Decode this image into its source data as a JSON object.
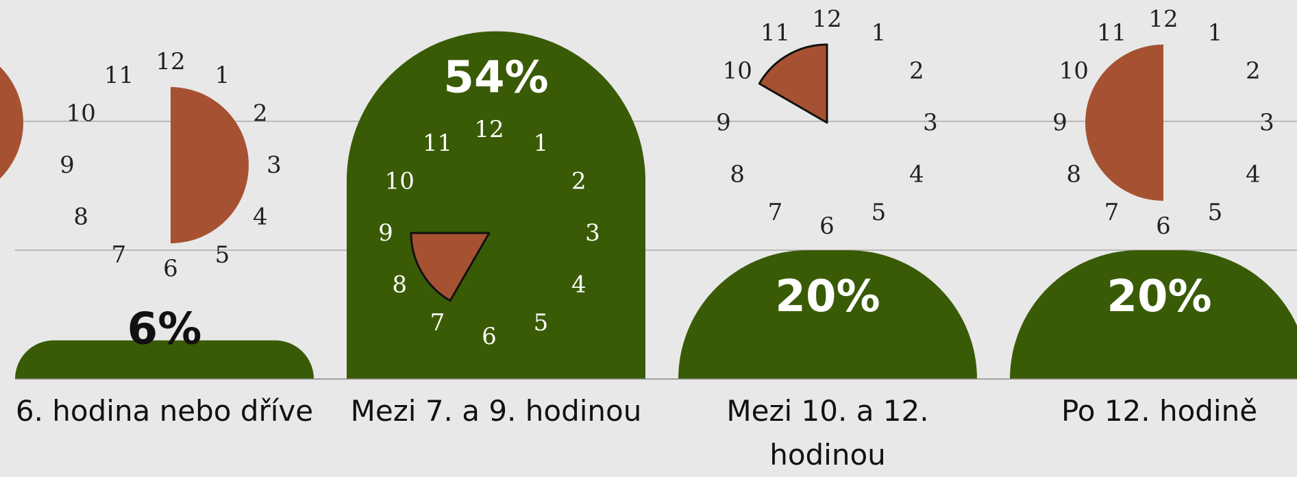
{
  "chart_data": {
    "type": "bar",
    "categories": [
      "6. hodina nebo dříve",
      "Mezi 7. a 9. hodinou",
      "Mezi 10. a 12. hodinou",
      "Po 12. hodině"
    ],
    "values": [
      6,
      54,
      20,
      20
    ],
    "value_labels": [
      "6%",
      "54%",
      "20%",
      "20%"
    ],
    "color": "#3a5b06",
    "ylim": [
      0,
      58
    ],
    "clock_color": "#a65232",
    "clock_numbers": [
      12,
      1,
      2,
      3,
      4,
      5,
      6,
      7,
      8,
      9,
      10,
      11
    ],
    "clock_spans": [
      [
        12,
        6
      ],
      [
        7,
        9
      ],
      [
        10,
        12
      ],
      [
        6,
        12
      ]
    ]
  }
}
